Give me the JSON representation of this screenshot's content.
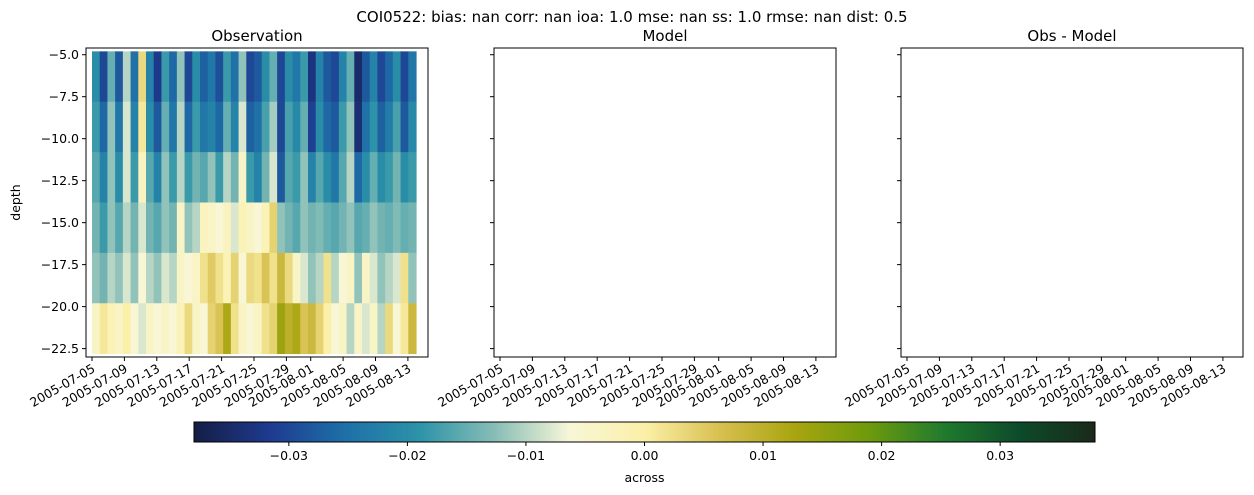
{
  "title": "COI0522: bias: nan  corr: nan  ioa: 1.0  mse: nan  ss: 1.0  rmse: nan  dist: 0.5",
  "chart_data": {
    "type": "heatmap",
    "suptitle": "COI0522: bias: nan  corr: nan  ioa: 1.0  mse: nan  ss: 1.0  rmse: nan  dist: 0.5",
    "panels": [
      {
        "title": "Observation",
        "ylabel": "depth",
        "has_data": true,
        "x_ticks": [
          "2005-07-05",
          "2005-07-09",
          "2005-07-13",
          "2005-07-17",
          "2005-07-21",
          "2005-07-25",
          "2005-07-29",
          "2005-08-01",
          "2005-08-05",
          "2005-08-09",
          "2005-08-13"
        ],
        "y_ticks": [
          "−5.0",
          "−7.5",
          "−10.0",
          "−12.5",
          "−15.0",
          "−17.5",
          "−20.0",
          "−22.5"
        ],
        "depth_levels": [
          -6.3,
          -9.3,
          -12.3,
          -15.3,
          -18.3,
          -21.3
        ],
        "x_start": "2005-07-05",
        "x_end": "2005-08-14",
        "values": [
          [
            -0.02,
            -0.03,
            -0.015,
            -0.028,
            -0.01,
            -0.025,
            0.003,
            -0.022,
            -0.032,
            -0.018,
            -0.026,
            -0.012,
            -0.03,
            -0.02,
            -0.027,
            -0.024,
            -0.029,
            -0.018,
            -0.025,
            -0.012,
            -0.03,
            -0.028,
            -0.02,
            -0.015,
            -0.03,
            -0.02,
            -0.024,
            -0.018,
            -0.033,
            -0.022,
            -0.028,
            -0.03,
            -0.022,
            -0.015,
            -0.035,
            -0.028,
            -0.022,
            -0.03,
            -0.026,
            -0.02,
            -0.03,
            -0.024
          ],
          [
            -0.018,
            -0.026,
            -0.012,
            -0.024,
            -0.008,
            -0.022,
            0.001,
            -0.02,
            -0.028,
            -0.015,
            -0.024,
            -0.01,
            -0.026,
            -0.018,
            -0.024,
            -0.022,
            -0.026,
            -0.015,
            -0.022,
            -0.008,
            -0.027,
            -0.025,
            -0.017,
            -0.011,
            -0.03,
            -0.017,
            -0.021,
            -0.015,
            -0.031,
            -0.02,
            -0.026,
            -0.028,
            -0.018,
            -0.012,
            -0.034,
            -0.025,
            -0.019,
            -0.027,
            -0.023,
            -0.017,
            -0.028,
            -0.021
          ],
          [
            -0.016,
            -0.022,
            -0.012,
            -0.02,
            -0.008,
            -0.018,
            -0.003,
            -0.016,
            -0.022,
            -0.012,
            -0.018,
            -0.01,
            -0.018,
            -0.014,
            -0.016,
            -0.012,
            -0.018,
            -0.01,
            -0.014,
            -0.004,
            -0.018,
            -0.022,
            -0.014,
            -0.008,
            -0.028,
            -0.016,
            -0.018,
            -0.012,
            -0.022,
            -0.016,
            -0.02,
            -0.024,
            -0.016,
            -0.01,
            -0.026,
            -0.02,
            -0.015,
            -0.02,
            -0.018,
            -0.014,
            -0.02,
            -0.018
          ],
          [
            -0.014,
            -0.018,
            -0.012,
            -0.016,
            -0.01,
            -0.014,
            -0.008,
            -0.014,
            -0.016,
            -0.012,
            -0.014,
            -0.004,
            -0.012,
            -0.01,
            -0.003,
            -0.004,
            -0.006,
            -0.003,
            -0.008,
            -0.002,
            -0.004,
            -0.006,
            -0.002,
            0.004,
            -0.012,
            -0.014,
            -0.016,
            -0.012,
            -0.014,
            -0.013,
            -0.015,
            -0.016,
            -0.014,
            -0.012,
            -0.016,
            -0.015,
            -0.012,
            -0.014,
            -0.015,
            -0.013,
            -0.015,
            -0.014
          ],
          [
            -0.012,
            -0.014,
            -0.01,
            -0.012,
            -0.008,
            -0.012,
            -0.006,
            -0.01,
            -0.012,
            -0.008,
            -0.01,
            -0.004,
            -0.006,
            -0.004,
            0.002,
            0.005,
            0.002,
            -0.002,
            0.004,
            -0.006,
            0.003,
            0.002,
            0.006,
            0.002,
            0.008,
            0.003,
            -0.004,
            -0.008,
            -0.012,
            -0.01,
            0.002,
            -0.01,
            -0.006,
            -0.004,
            -0.012,
            -0.004,
            -0.008,
            -0.012,
            -0.01,
            -0.008,
            0.002,
            -0.012
          ],
          [
            -0.004,
            0.001,
            -0.002,
            -0.004,
            0.0,
            -0.006,
            -0.008,
            -0.004,
            -0.006,
            -0.004,
            -0.006,
            -0.002,
            0.003,
            -0.004,
            -0.006,
            0.004,
            0.006,
            0.012,
            0.002,
            -0.004,
            -0.006,
            -0.004,
            0.002,
            0.004,
            0.014,
            0.01,
            0.012,
            0.006,
            0.008,
            0.004,
            0.0,
            -0.006,
            -0.004,
            -0.01,
            -0.004,
            -0.008,
            -0.004,
            -0.01,
            0.003,
            -0.006,
            0.001,
            0.008
          ]
        ]
      },
      {
        "title": "Model",
        "has_data": false,
        "x_ticks": [
          "2005-07-05",
          "2005-07-09",
          "2005-07-13",
          "2005-07-17",
          "2005-07-21",
          "2005-07-25",
          "2005-07-29",
          "2005-08-01",
          "2005-08-05",
          "2005-08-09",
          "2005-08-13"
        ]
      },
      {
        "title": "Obs - Model",
        "has_data": false,
        "x_ticks": [
          "2005-07-05",
          "2005-07-09",
          "2005-07-13",
          "2005-07-17",
          "2005-07-21",
          "2005-07-25",
          "2005-07-29",
          "2005-08-01",
          "2005-08-05",
          "2005-08-09",
          "2005-08-13"
        ]
      }
    ],
    "colorbar": {
      "label": "across",
      "vmin": -0.038,
      "vmax": 0.038,
      "ticks": [
        -0.03,
        -0.02,
        -0.01,
        0.0,
        0.01,
        0.02,
        0.03
      ],
      "tick_labels": [
        "−0.03",
        "−0.02",
        "−0.01",
        "0.00",
        "0.01",
        "0.02",
        "0.03"
      ],
      "colormap": [
        "#151d44",
        "#1e3a8f",
        "#1e6fa8",
        "#2c93a8",
        "#86bdb6",
        "#f8f6d8",
        "#fbf0a8",
        "#d8c050",
        "#a8a510",
        "#6d9a0c",
        "#1f7a2e",
        "#0d4a2a",
        "#1a2a1a"
      ]
    }
  }
}
